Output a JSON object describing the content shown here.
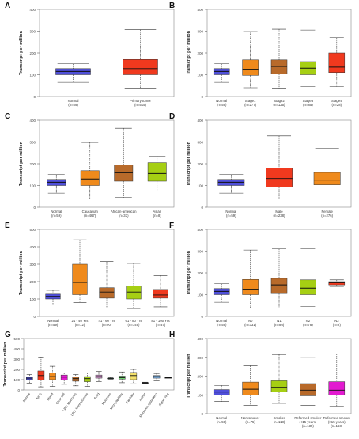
{
  "figure": {
    "background": "#ffffff"
  },
  "chart_data": [
    {
      "type": "boxplot",
      "letter": "A",
      "ylabel": "Transcript per million",
      "ylim": [
        0,
        400
      ],
      "yticks": [
        0,
        100,
        200,
        300,
        400
      ],
      "categories": [
        {
          "name": "Normal",
          "n": "(n=59)",
          "color": "#4f4fd9",
          "min": 65,
          "q1": 100,
          "median": 115,
          "q3": 128,
          "max": 150
        },
        {
          "name": "Primary tumor",
          "n": "(n=515)",
          "color": "#f0391e",
          "min": 38,
          "q1": 100,
          "median": 128,
          "q3": 170,
          "max": 307
        }
      ]
    },
    {
      "type": "boxplot",
      "letter": "B",
      "ylabel": "Transcript per million",
      "ylim": [
        0,
        400
      ],
      "yticks": [
        0,
        100,
        200,
        300,
        400
      ],
      "categories": [
        {
          "name": "Normal",
          "n": "(n=59)",
          "color": "#4f4fd9",
          "min": 65,
          "q1": 100,
          "median": 115,
          "q3": 128,
          "max": 150
        },
        {
          "name": "Stage1",
          "n": "(n=277)",
          "color": "#ef8a1c",
          "min": 40,
          "q1": 97,
          "median": 125,
          "q3": 168,
          "max": 298
        },
        {
          "name": "Stage2",
          "n": "(n=125)",
          "color": "#b86a2a",
          "min": 38,
          "q1": 103,
          "median": 138,
          "q3": 168,
          "max": 309
        },
        {
          "name": "Stage3",
          "n": "(n=85)",
          "color": "#a6cf13",
          "min": 45,
          "q1": 100,
          "median": 130,
          "q3": 160,
          "max": 305
        },
        {
          "name": "Stage4",
          "n": "(n=28)",
          "color": "#f0391e",
          "min": 45,
          "q1": 110,
          "median": 135,
          "q3": 200,
          "max": 270
        }
      ]
    },
    {
      "type": "boxplot",
      "letter": "C",
      "ylabel": "Transcript per million",
      "ylim": [
        0,
        400
      ],
      "yticks": [
        0,
        100,
        200,
        300,
        400
      ],
      "categories": [
        {
          "name": "Normal",
          "n": "(n=59)",
          "color": "#4f4fd9",
          "min": 65,
          "q1": 100,
          "median": 115,
          "q3": 128,
          "max": 150
        },
        {
          "name": "Caucasian",
          "n": "(n=467)",
          "color": "#ef8a1c",
          "min": 38,
          "q1": 100,
          "median": 130,
          "q3": 168,
          "max": 298
        },
        {
          "name": "African-american",
          "n": "(n=33)",
          "color": "#b86a2a",
          "min": 45,
          "q1": 120,
          "median": 158,
          "q3": 195,
          "max": 363
        },
        {
          "name": "Asian",
          "n": "(n=8)",
          "color": "#a6cf13",
          "min": 75,
          "q1": 120,
          "median": 155,
          "q3": 205,
          "max": 235
        }
      ]
    },
    {
      "type": "boxplot",
      "letter": "D",
      "ylabel": "Transcript per million",
      "ylim": [
        0,
        400
      ],
      "yticks": [
        0,
        100,
        200,
        300,
        400
      ],
      "categories": [
        {
          "name": "Normal",
          "n": "(n=59)",
          "color": "#4f4fd9",
          "min": 65,
          "q1": 100,
          "median": 115,
          "q3": 128,
          "max": 150
        },
        {
          "name": "Male",
          "n": "(n=238)",
          "color": "#f0391e",
          "min": 38,
          "q1": 92,
          "median": 132,
          "q3": 180,
          "max": 328
        },
        {
          "name": "Female",
          "n": "(n=276)",
          "color": "#ef8a1c",
          "min": 38,
          "q1": 103,
          "median": 125,
          "q3": 160,
          "max": 270
        }
      ]
    },
    {
      "type": "boxplot",
      "letter": "E",
      "ylabel": "Transcript per million",
      "ylim": [
        0,
        500
      ],
      "yticks": [
        0,
        100,
        200,
        300,
        400,
        500
      ],
      "categories": [
        {
          "name": "Normal",
          "n": "(n=59)",
          "color": "#4f4fd9",
          "min": 65,
          "q1": 100,
          "median": 115,
          "q3": 128,
          "max": 150
        },
        {
          "name": "21 - 40 Yrs",
          "n": "(n=12)",
          "color": "#ef8a1c",
          "min": 80,
          "q1": 125,
          "median": 195,
          "q3": 300,
          "max": 440
        },
        {
          "name": "41 - 60 Yrs",
          "n": "(n=90)",
          "color": "#b86a2a",
          "min": 48,
          "q1": 105,
          "median": 140,
          "q3": 165,
          "max": 315
        },
        {
          "name": "61 - 80 Yrs",
          "n": "(n=149)",
          "color": "#a6cf13",
          "min": 45,
          "q1": 100,
          "median": 140,
          "q3": 175,
          "max": 305
        },
        {
          "name": "81 - 100 Yrs",
          "n": "(n=37)",
          "color": "#f0391e",
          "min": 55,
          "q1": 105,
          "median": 123,
          "q3": 155,
          "max": 235
        }
      ]
    },
    {
      "type": "boxplot",
      "letter": "F",
      "ylabel": "Transcript per million",
      "ylim": [
        0,
        400
      ],
      "yticks": [
        0,
        100,
        200,
        300,
        400
      ],
      "categories": [
        {
          "name": "Normal",
          "n": "(n=59)",
          "color": "#4f4fd9",
          "min": 65,
          "q1": 100,
          "median": 115,
          "q3": 128,
          "max": 150
        },
        {
          "name": "N0",
          "n": "(n=331)",
          "color": "#ef8a1c",
          "min": 38,
          "q1": 100,
          "median": 125,
          "q3": 170,
          "max": 305
        },
        {
          "name": "N1",
          "n": "(n=86)",
          "color": "#b86a2a",
          "min": 38,
          "q1": 105,
          "median": 145,
          "q3": 175,
          "max": 310
        },
        {
          "name": "N2",
          "n": "(n=78)",
          "color": "#a6cf13",
          "min": 45,
          "q1": 100,
          "median": 130,
          "q3": 168,
          "max": 310
        },
        {
          "name": "N3",
          "n": "(n=2)",
          "color": "#f0391e",
          "min": 138,
          "q1": 145,
          "median": 155,
          "q3": 160,
          "max": 168
        }
      ]
    },
    {
      "type": "boxplot",
      "letter": "G",
      "ylabel": "Transcript per million",
      "ylim": [
        0,
        500
      ],
      "yticks": [
        0,
        100,
        200,
        300,
        400,
        500
      ],
      "categories": [
        {
          "name": "Normal",
          "n": "",
          "color": "#4f4fd9",
          "min": 65,
          "q1": 100,
          "median": 115,
          "q3": 128,
          "max": 150
        },
        {
          "name": "NOS",
          "n": "",
          "color": "#f0391e",
          "min": 30,
          "q1": 95,
          "median": 140,
          "q3": 185,
          "max": 320
        },
        {
          "name": "Mixed",
          "n": "",
          "color": "#ef8a1c",
          "min": 35,
          "q1": 100,
          "median": 130,
          "q3": 165,
          "max": 230
        },
        {
          "name": "Clear cell",
          "n": "",
          "color": "#e21ad0",
          "min": 55,
          "q1": 95,
          "median": 125,
          "q3": 145,
          "max": 165
        },
        {
          "name": "LBC: Mucinous",
          "n": "",
          "color": "#b86a2a",
          "min": 40,
          "q1": 85,
          "median": 110,
          "q3": 125,
          "max": 150
        },
        {
          "name": "LBC: Nonmucinous",
          "n": "",
          "color": "#a6cf13",
          "min": 35,
          "q1": 80,
          "median": 110,
          "q3": 130,
          "max": 165
        },
        {
          "name": "Solid",
          "n": "",
          "color": "#c98fc4",
          "min": 80,
          "q1": 115,
          "median": 130,
          "q3": 145,
          "max": 180
        },
        {
          "name": "Mucinous",
          "n": "",
          "color": "#29a36b",
          "min": 105,
          "q1": 108,
          "median": 110,
          "q3": 115,
          "max": 120
        },
        {
          "name": "Micropapillary",
          "n": "",
          "color": "#6fd66f",
          "min": 70,
          "q1": 105,
          "median": 120,
          "q3": 135,
          "max": 175
        },
        {
          "name": "Papillary",
          "n": "",
          "color": "#f3e06a",
          "min": 60,
          "q1": 100,
          "median": 140,
          "q3": 170,
          "max": 200
        },
        {
          "name": "Acinar",
          "n": "",
          "color": "#4b4b4b",
          "min": 60,
          "q1": 63,
          "median": 68,
          "q3": 72,
          "max": 75
        },
        {
          "name": "Mucinous cystadeno",
          "n": "",
          "color": "#7fb3e6",
          "min": 90,
          "q1": 115,
          "median": 130,
          "q3": 140,
          "max": 160
        },
        {
          "name": "Signet ring",
          "n": "",
          "color": "#111111",
          "min": 120,
          "q1": 120,
          "median": 120,
          "q3": 120,
          "max": 120
        }
      ]
    },
    {
      "type": "boxplot",
      "letter": "H",
      "ylabel": "Transcript per million",
      "ylim": [
        0,
        400
      ],
      "yticks": [
        0,
        100,
        200,
        300,
        400
      ],
      "categories": [
        {
          "name": "Normal",
          "n": "(n=59)",
          "color": "#4f4fd9",
          "min": 65,
          "q1": 100,
          "median": 115,
          "q3": 128,
          "max": 150
        },
        {
          "name": "Non smoker",
          "n": "(n=75)",
          "color": "#ef8a1c",
          "min": 45,
          "q1": 100,
          "median": 130,
          "q3": 168,
          "max": 255
        },
        {
          "name": "Smoker",
          "n": "(n=118)",
          "color": "#a6cf13",
          "min": 55,
          "q1": 115,
          "median": 140,
          "q3": 175,
          "max": 315
        },
        {
          "name": "Reformed smoker (<15 years)",
          "n": "(n=135)",
          "color": "#b86a2a",
          "min": 45,
          "q1": 95,
          "median": 125,
          "q3": 160,
          "max": 298
        },
        {
          "name": "Reformed smoker (>15 years)",
          "n": "(n=168)",
          "color": "#e21ad0",
          "min": 40,
          "q1": 100,
          "median": 125,
          "q3": 170,
          "max": 318
        }
      ]
    }
  ]
}
